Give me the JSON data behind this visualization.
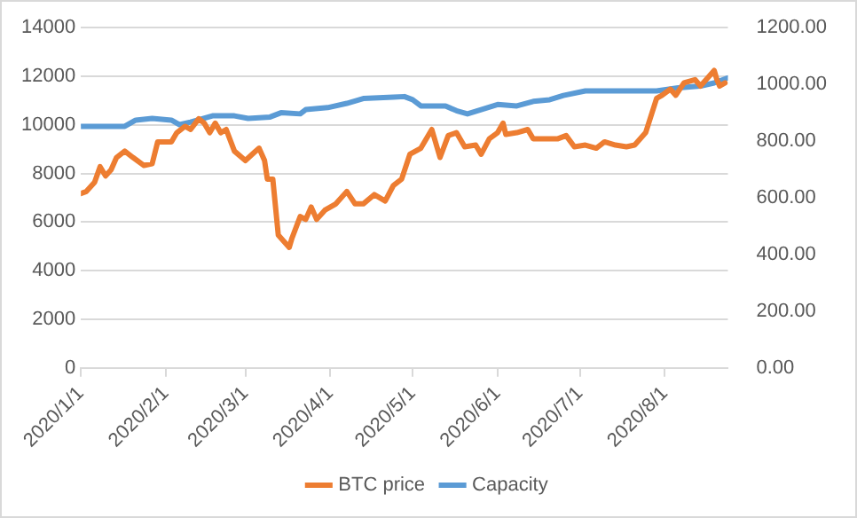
{
  "chart_data": {
    "type": "line",
    "xlim": [
      "2020-01-01",
      "2020-08-24"
    ],
    "xticks": [
      {
        "value": "2020-01-01",
        "label": "2020/1/1"
      },
      {
        "value": "2020-02-01",
        "label": "2020/2/1"
      },
      {
        "value": "2020-03-01",
        "label": "2020/3/1"
      },
      {
        "value": "2020-04-01",
        "label": "2020/4/1"
      },
      {
        "value": "2020-05-01",
        "label": "2020/5/1"
      },
      {
        "value": "2020-06-01",
        "label": "2020/6/1"
      },
      {
        "value": "2020-07-01",
        "label": "2020/7/1"
      },
      {
        "value": "2020-08-01",
        "label": "2020/8/1"
      }
    ],
    "ylim": [
      0,
      14000
    ],
    "yticks": [
      0,
      2000,
      4000,
      6000,
      8000,
      10000,
      12000,
      14000
    ],
    "y2lim": [
      0,
      1200
    ],
    "y2ticks": [
      {
        "value": 0,
        "label": "0.00"
      },
      {
        "value": 200,
        "label": "200.00"
      },
      {
        "value": 400,
        "label": "400.00"
      },
      {
        "value": 600,
        "label": "600.00"
      },
      {
        "value": 800,
        "label": "800.00"
      },
      {
        "value": 1000,
        "label": "1000.00"
      },
      {
        "value": 1200,
        "label": "1200.00"
      }
    ],
    "grid": "y",
    "legend": "bottom",
    "marker": "none",
    "line_style": "solid",
    "series": [
      {
        "name": "BTC price",
        "color": "#ed7d31",
        "x": [
          "2020-01-01",
          "2020-01-03",
          "2020-01-06",
          "2020-01-08",
          "2020-01-10",
          "2020-01-12",
          "2020-01-14",
          "2020-01-17",
          "2020-01-20",
          "2020-01-24",
          "2020-01-27",
          "2020-01-29",
          "2020-02-03",
          "2020-02-05",
          "2020-02-08",
          "2020-02-10",
          "2020-02-13",
          "2020-02-15",
          "2020-02-17",
          "2020-02-19",
          "2020-02-21",
          "2020-02-23",
          "2020-02-26",
          "2020-03-01",
          "2020-03-04",
          "2020-03-06",
          "2020-03-08",
          "2020-03-09",
          "2020-03-11",
          "2020-03-13",
          "2020-03-15",
          "2020-03-17",
          "2020-03-18",
          "2020-03-21",
          "2020-03-23",
          "2020-03-25",
          "2020-03-27",
          "2020-03-30",
          "2020-04-03",
          "2020-04-07",
          "2020-04-10",
          "2020-04-13",
          "2020-04-17",
          "2020-04-21",
          "2020-04-24",
          "2020-04-27",
          "2020-04-30",
          "2020-05-04",
          "2020-05-08",
          "2020-05-11",
          "2020-05-14",
          "2020-05-17",
          "2020-05-20",
          "2020-05-24",
          "2020-05-26",
          "2020-05-29",
          "2020-06-01",
          "2020-06-03",
          "2020-06-04",
          "2020-06-08",
          "2020-06-12",
          "2020-06-14",
          "2020-06-19",
          "2020-06-23",
          "2020-06-26",
          "2020-06-29",
          "2020-07-03",
          "2020-07-07",
          "2020-07-10",
          "2020-07-14",
          "2020-07-18",
          "2020-07-21",
          "2020-07-25",
          "2020-07-29",
          "2020-07-31",
          "2020-08-03",
          "2020-08-05",
          "2020-08-08",
          "2020-08-12",
          "2020-08-14",
          "2020-08-17",
          "2020-08-19",
          "2020-08-20",
          "2020-08-21",
          "2020-08-23"
        ],
        "values": [
          7180,
          7260,
          7640,
          8280,
          7900,
          8150,
          8660,
          8920,
          8660,
          8330,
          8400,
          9300,
          9300,
          9680,
          9940,
          9810,
          10250,
          10070,
          9680,
          10070,
          9680,
          9810,
          8920,
          8530,
          8840,
          9040,
          8530,
          7770,
          7770,
          5470,
          5210,
          4960,
          5340,
          6230,
          6110,
          6620,
          6110,
          6490,
          6750,
          7260,
          6750,
          6750,
          7130,
          6870,
          7510,
          7770,
          8790,
          9040,
          9810,
          8660,
          9560,
          9680,
          9100,
          9170,
          8790,
          9430,
          9680,
          10070,
          9610,
          9680,
          9810,
          9430,
          9430,
          9430,
          9560,
          9100,
          9170,
          9040,
          9300,
          9170,
          9100,
          9170,
          9680,
          11090,
          11220,
          11470,
          11220,
          11730,
          11860,
          11600,
          11980,
          12240,
          11860,
          11600,
          11730
        ]
      },
      {
        "name": "Capacity",
        "color": "#5b9bd5",
        "axis": "y2",
        "x": [
          "2020-01-01",
          "2020-01-17",
          "2020-01-21",
          "2020-01-27",
          "2020-02-03",
          "2020-02-06",
          "2020-02-10",
          "2020-02-18",
          "2020-02-26",
          "2020-03-02",
          "2020-03-10",
          "2020-03-14",
          "2020-03-21",
          "2020-03-23",
          "2020-03-31",
          "2020-04-07",
          "2020-04-13",
          "2020-04-24",
          "2020-04-28",
          "2020-05-01",
          "2020-05-04",
          "2020-05-13",
          "2020-05-17",
          "2020-05-21",
          "2020-05-26",
          "2020-06-01",
          "2020-06-08",
          "2020-06-14",
          "2020-06-20",
          "2020-06-25",
          "2020-07-03",
          "2020-07-20",
          "2020-07-29",
          "2020-08-06",
          "2020-08-14",
          "2020-08-19",
          "2020-08-24"
        ],
        "values": [
          852,
          852,
          874,
          880,
          874,
          858,
          867,
          889,
          889,
          880,
          885,
          900,
          896,
          911,
          918,
          933,
          950,
          955,
          957,
          946,
          924,
          924,
          907,
          896,
          911,
          929,
          924,
          940,
          946,
          961,
          977,
          977,
          977,
          988,
          994,
          1005,
          1023
        ]
      }
    ]
  }
}
